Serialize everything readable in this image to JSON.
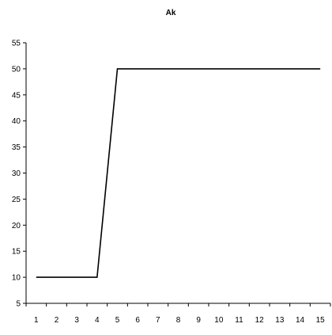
{
  "chart_data": {
    "type": "line",
    "title": "Ak",
    "xlabel": "",
    "ylabel": "",
    "x": [
      1,
      2,
      3,
      4,
      5,
      6,
      7,
      8,
      9,
      10,
      11,
      12,
      13,
      14,
      15
    ],
    "xticks": [
      "1",
      "2",
      "3",
      "4",
      "5",
      "6",
      "7",
      "8",
      "9",
      "10",
      "11",
      "12",
      "13",
      "14",
      "15"
    ],
    "yticks": [
      5,
      10,
      15,
      20,
      25,
      30,
      35,
      40,
      45,
      50,
      55
    ],
    "ylim": [
      5,
      55
    ],
    "grid": false,
    "legend": "none",
    "series": [
      {
        "values": [
          10,
          10,
          10,
          10,
          50,
          50,
          50,
          50,
          50,
          50,
          50,
          50,
          50,
          50,
          50
        ],
        "color": "#000000"
      }
    ]
  }
}
